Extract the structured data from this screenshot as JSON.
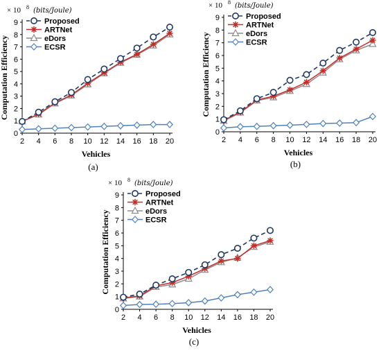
{
  "chart_data": [
    {
      "id": "a",
      "type": "line",
      "panel_label": "(a)",
      "scale_label": "× 10",
      "scale_exponent": "8",
      "unit_label": "(bits/Joule)",
      "ylabel": "Computation Efficiency",
      "xlabel": "Vehicles",
      "x": [
        2,
        4,
        6,
        8,
        10,
        12,
        14,
        16,
        18,
        20
      ],
      "ylim": [
        0,
        9
      ],
      "yticks": [
        0,
        1,
        2,
        3,
        4,
        5,
        6,
        7,
        8,
        9
      ],
      "grid": false,
      "legend_position": "top-left",
      "series": [
        {
          "name": "Proposed",
          "color": "#1f3864",
          "marker": "circle",
          "dash": true,
          "values": [
            0.95,
            1.7,
            2.55,
            3.3,
            4.35,
            5.2,
            6.05,
            6.9,
            7.8,
            8.6
          ]
        },
        {
          "name": "ARTNet",
          "color": "#c0302b",
          "marker": "asterisk",
          "dash": false,
          "values": [
            0.95,
            1.55,
            2.45,
            3.1,
            4.05,
            4.9,
            5.75,
            6.4,
            7.2,
            8.1
          ]
        },
        {
          "name": "eDors",
          "color": "#8c8c8c",
          "marker": "triangle",
          "dash": false,
          "values": [
            0.95,
            1.5,
            2.4,
            3.05,
            3.95,
            4.85,
            5.7,
            6.35,
            7.1,
            8.0
          ]
        },
        {
          "name": "ECSR",
          "color": "#4f81bd",
          "marker": "diamond",
          "dash": false,
          "values": [
            0.3,
            0.35,
            0.4,
            0.45,
            0.5,
            0.55,
            0.6,
            0.65,
            0.7,
            0.7
          ]
        }
      ]
    },
    {
      "id": "b",
      "type": "line",
      "panel_label": "(b)",
      "scale_label": "× 10",
      "scale_exponent": "8",
      "unit_label": "(bits/Joule)",
      "ylabel": "Computation Efficiency",
      "xlabel": "Vehicles",
      "x": [
        2,
        4,
        6,
        8,
        10,
        12,
        14,
        16,
        18,
        20
      ],
      "ylim": [
        0,
        9
      ],
      "yticks": [
        0,
        1,
        2,
        3,
        4,
        5,
        6,
        7,
        8,
        9
      ],
      "grid": false,
      "legend_position": "top-left",
      "series": [
        {
          "name": "Proposed",
          "color": "#1f3864",
          "marker": "circle",
          "dash": true,
          "values": [
            0.95,
            1.65,
            2.6,
            3.1,
            4.05,
            4.5,
            5.4,
            6.4,
            7.05,
            7.8
          ]
        },
        {
          "name": "ARTNet",
          "color": "#c0302b",
          "marker": "asterisk",
          "dash": false,
          "values": [
            0.9,
            1.55,
            2.5,
            2.8,
            3.3,
            3.9,
            4.8,
            5.8,
            6.5,
            7.2
          ]
        },
        {
          "name": "eDors",
          "color": "#8c8c8c",
          "marker": "triangle",
          "dash": false,
          "values": [
            0.85,
            1.5,
            2.45,
            2.7,
            3.2,
            3.75,
            4.65,
            5.7,
            6.4,
            6.9
          ]
        },
        {
          "name": "ECSR",
          "color": "#4f81bd",
          "marker": "diamond",
          "dash": false,
          "values": [
            0.3,
            0.4,
            0.42,
            0.48,
            0.52,
            0.58,
            0.65,
            0.68,
            0.72,
            1.2
          ]
        }
      ]
    },
    {
      "id": "c",
      "type": "line",
      "panel_label": "(c)",
      "scale_label": "× 10",
      "scale_exponent": "8",
      "unit_label": "(bits/Joule)",
      "ylabel": "Computation Efficiency",
      "xlabel": "Vehicles",
      "x": [
        2,
        4,
        6,
        8,
        10,
        12,
        14,
        16,
        18,
        20
      ],
      "ylim": [
        0,
        9
      ],
      "yticks": [
        0,
        1,
        2,
        3,
        4,
        5,
        6,
        7,
        8,
        9
      ],
      "grid": false,
      "legend_position": "top-left",
      "series": [
        {
          "name": "Proposed",
          "color": "#1f3864",
          "marker": "circle",
          "dash": true,
          "values": [
            0.95,
            1.2,
            1.9,
            2.4,
            2.9,
            3.5,
            4.3,
            4.8,
            5.6,
            6.2
          ]
        },
        {
          "name": "ARTNet",
          "color": "#c0302b",
          "marker": "asterisk",
          "dash": false,
          "values": [
            0.9,
            1.05,
            1.85,
            2.1,
            2.6,
            3.2,
            3.8,
            4.0,
            5.0,
            5.4
          ]
        },
        {
          "name": "eDors",
          "color": "#8c8c8c",
          "marker": "triangle",
          "dash": false,
          "values": [
            0.85,
            1.0,
            1.75,
            1.95,
            2.4,
            3.1,
            3.7,
            4.05,
            4.9,
            5.3
          ]
        },
        {
          "name": "ECSR",
          "color": "#4f81bd",
          "marker": "diamond",
          "dash": false,
          "values": [
            0.3,
            0.38,
            0.4,
            0.45,
            0.52,
            0.65,
            0.9,
            1.15,
            1.35,
            1.55
          ]
        }
      ]
    }
  ]
}
